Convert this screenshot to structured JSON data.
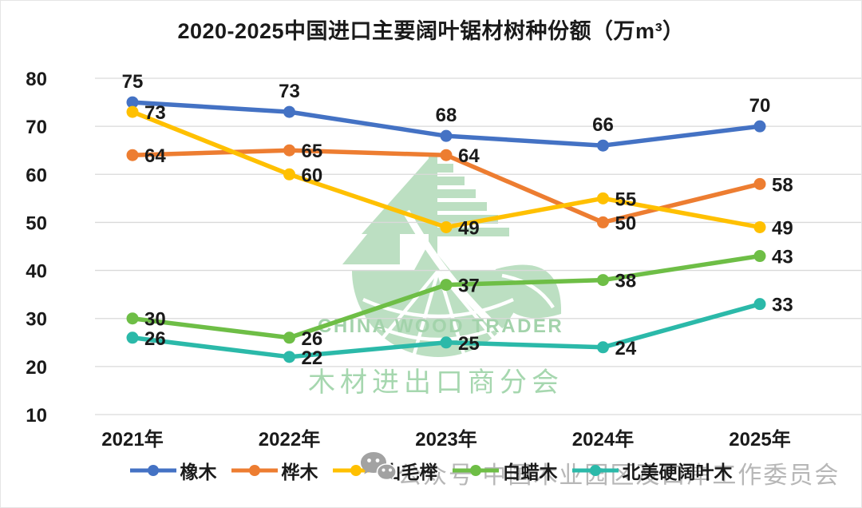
{
  "title": "2020-2025中国进口主要阔叶锯材树种份额（万m³）",
  "chart_data": {
    "type": "line",
    "title": "2020-2025中国进口主要阔叶锯材树种份额（万m³）",
    "unit": "万m³",
    "categories": [
      "2021年",
      "2022年",
      "2023年",
      "2024年",
      "2025年"
    ],
    "series": [
      {
        "name": "橡木",
        "color": "#4472C4",
        "values": [
          75,
          73,
          68,
          66,
          70
        ],
        "label_position": "above"
      },
      {
        "name": "桦木",
        "color": "#ED7D31",
        "values": [
          64,
          65,
          64,
          50,
          58
        ],
        "label_position": "right"
      },
      {
        "name": "山毛榉",
        "color": "#FFC000",
        "values": [
          73,
          60,
          49,
          55,
          49
        ],
        "label_position": "right"
      },
      {
        "name": "白蜡木",
        "color": "#6EBE46",
        "values": [
          30,
          26,
          37,
          38,
          43
        ],
        "label_position": "right"
      },
      {
        "name": "北美硬阔叶木",
        "color": "#2BB9A9",
        "values": [
          26,
          22,
          25,
          24,
          33
        ],
        "label_position": "right"
      }
    ],
    "y_ticks": [
      80,
      70,
      60,
      50,
      40,
      30,
      20,
      10
    ],
    "ylim": [
      10,
      80
    ],
    "grid": true,
    "legend_position": "bottom"
  },
  "watermark_center": {
    "logo": "china-wood-trader-logo",
    "line1": "CHINA WOOD TRADER",
    "line2": "木材进出口商分会",
    "color": "#A6D7AF"
  },
  "watermark_footer": {
    "icon": "wechat-icon",
    "text": "公众号 中国木业园区及口岸工作委员会",
    "color": "#B7B7B7"
  },
  "colors": {
    "grid_line": "#D9D9D9",
    "axis_text": "#1A1A1A"
  }
}
